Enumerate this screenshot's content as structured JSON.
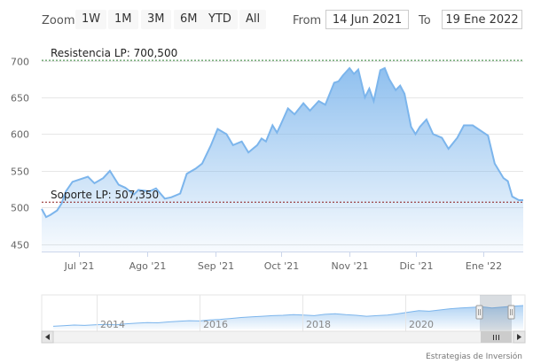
{
  "toolbar": {
    "zoom_label": "Zoom",
    "zoom_buttons": [
      "1W",
      "1M",
      "3M",
      "6M",
      "YTD",
      "All"
    ],
    "from_label": "From",
    "from_value": "14 Jun 2021",
    "to_label": "To",
    "to_value": "19 Ene 2022"
  },
  "credits": "Estrategias de Inversión",
  "chart_data": {
    "type": "area",
    "y_ticks": [
      450,
      500,
      550,
      600,
      650,
      700
    ],
    "ylim": [
      440,
      720
    ],
    "x_ticks": [
      "Jul '21",
      "Ago '21",
      "Sep '21",
      "Oct '21",
      "Nov '21",
      "Dic '21",
      "Ene '22"
    ],
    "x_tick_dates": [
      "2021-07-01",
      "2021-08-01",
      "2021-09-01",
      "2021-10-01",
      "2021-11-01",
      "2021-12-01",
      "2022-01-01"
    ],
    "x_range": [
      "2021-06-14",
      "2022-01-19"
    ],
    "grid": "horizontal",
    "series": [
      {
        "x": [
          "2021-06-14",
          "2021-06-16",
          "2021-06-18",
          "2021-06-21",
          "2021-06-23",
          "2021-06-25",
          "2021-06-28",
          "2021-07-01",
          "2021-07-05",
          "2021-07-08",
          "2021-07-12",
          "2021-07-15",
          "2021-07-19",
          "2021-07-22",
          "2021-07-26",
          "2021-07-28",
          "2021-08-02",
          "2021-08-05",
          "2021-08-09",
          "2021-08-12",
          "2021-08-16",
          "2021-08-19",
          "2021-08-23",
          "2021-08-26",
          "2021-08-30",
          "2021-09-02",
          "2021-09-06",
          "2021-09-09",
          "2021-09-13",
          "2021-09-16",
          "2021-09-20",
          "2021-09-22",
          "2021-09-24",
          "2021-09-27",
          "2021-09-29",
          "2021-10-01",
          "2021-10-04",
          "2021-10-07",
          "2021-10-11",
          "2021-10-14",
          "2021-10-18",
          "2021-10-21",
          "2021-10-25",
          "2021-10-27",
          "2021-10-29",
          "2021-11-01",
          "2021-11-03",
          "2021-11-05",
          "2021-11-08",
          "2021-11-10",
          "2021-11-12",
          "2021-11-15",
          "2021-11-17",
          "2021-11-19",
          "2021-11-22",
          "2021-11-24",
          "2021-11-26",
          "2021-11-29",
          "2021-12-01",
          "2021-12-03",
          "2021-12-06",
          "2021-12-09",
          "2021-12-13",
          "2021-12-16",
          "2021-12-20",
          "2021-12-23",
          "2021-12-27",
          "2021-12-30",
          "2022-01-03",
          "2022-01-06",
          "2022-01-10",
          "2022-01-12",
          "2022-01-14",
          "2022-01-17",
          "2022-01-19"
        ],
        "values": [
          498,
          487,
          490,
          496,
          505,
          522,
          535,
          538,
          542,
          533,
          540,
          550,
          531,
          527,
          518,
          524,
          522,
          526,
          512,
          514,
          519,
          546,
          553,
          560,
          585,
          607,
          600,
          585,
          590,
          575,
          585,
          594,
          590,
          612,
          602,
          615,
          635,
          627,
          642,
          632,
          645,
          640,
          670,
          672,
          680,
          690,
          682,
          688,
          650,
          662,
          645,
          687,
          690,
          675,
          660,
          666,
          655,
          610,
          600,
          610,
          620,
          600,
          595,
          580,
          595,
          612,
          612,
          606,
          598,
          560,
          540,
          536,
          515,
          510,
          510
        ]
      }
    ],
    "annotations": [
      {
        "label": "Resistencia LP: 700,500",
        "value": 700.5
      },
      {
        "label": "Soporte LP: 507,350",
        "value": 507.35
      }
    ],
    "navigator": {
      "labels": [
        "2014",
        "2016",
        "2018",
        "2020"
      ],
      "values": [
        10,
        12,
        14,
        13,
        15,
        16,
        15,
        18,
        20,
        22,
        21,
        24,
        26,
        28,
        27,
        30,
        32,
        35,
        38,
        40,
        42,
        44,
        45,
        47,
        46,
        44,
        48,
        50,
        47,
        45,
        42,
        44,
        46,
        50,
        55,
        60,
        58,
        62,
        66,
        68,
        70,
        72,
        68,
        71,
        74,
        76
      ]
    }
  }
}
